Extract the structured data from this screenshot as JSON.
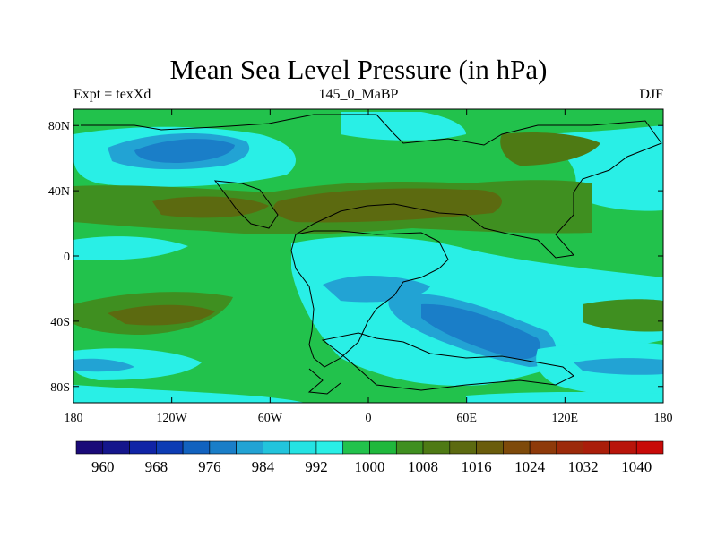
{
  "title": "Mean Sea Level Pressure (in hPa)",
  "subtitle_left": "Expt = texXd",
  "subtitle_center": "145_0_MaBP",
  "subtitle_right": "DJF",
  "map": {
    "projection": "cylindrical-equidistant",
    "lon_range": [
      -180,
      180
    ],
    "lat_range": [
      -90,
      90
    ],
    "lat_ticks": [
      {
        "value": 80,
        "label": "80N"
      },
      {
        "value": 40,
        "label": "40N"
      },
      {
        "value": 0,
        "label": "0"
      },
      {
        "value": -40,
        "label": "40S"
      },
      {
        "value": -80,
        "label": "80S"
      }
    ],
    "lon_ticks": [
      {
        "value": -180,
        "label": "180"
      },
      {
        "value": -120,
        "label": "120W"
      },
      {
        "value": -60,
        "label": "60W"
      },
      {
        "value": 0,
        "label": "0"
      },
      {
        "value": 60,
        "label": "60E"
      },
      {
        "value": 120,
        "label": "120E"
      },
      {
        "value": 180,
        "label": "180"
      }
    ]
  },
  "colorbar": {
    "colors": [
      "#1a0a78",
      "#15168c",
      "#1024a6",
      "#0d3cb4",
      "#1262bf",
      "#1a7ec8",
      "#22a3d4",
      "#22c4dc",
      "#24e3e3",
      "#29efe6",
      "#22c24c",
      "#1fb83c",
      "#3f8f20",
      "#4e7a14",
      "#5c6a10",
      "#6a5c0c",
      "#7e4a0a",
      "#8e3a0a",
      "#9c2a0a",
      "#aa1e0a",
      "#b8140a",
      "#c80a08"
    ],
    "labels": [
      "960",
      "968",
      "976",
      "984",
      "992",
      "1000",
      "1008",
      "1016",
      "1024",
      "1032",
      "1040"
    ]
  }
}
